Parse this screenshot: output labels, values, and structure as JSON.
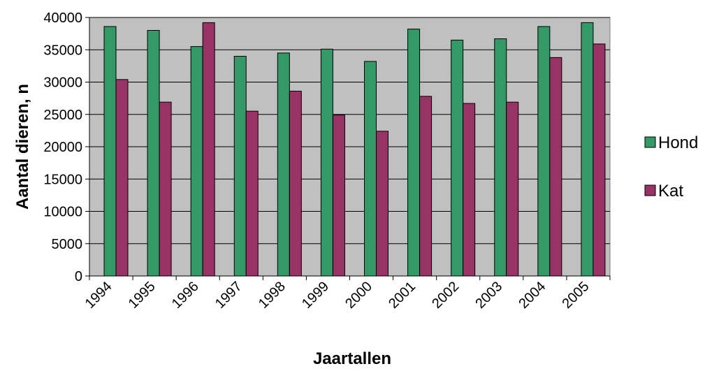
{
  "chart_data": {
    "type": "bar",
    "title": "",
    "xlabel": "Jaartallen",
    "ylabel": "Aantal dieren, n",
    "categories": [
      "1994",
      "1995",
      "1996",
      "1997",
      "1998",
      "1999",
      "2000",
      "2001",
      "2002",
      "2003",
      "2004",
      "2005"
    ],
    "series": [
      {
        "name": "Hond",
        "color": "#339966",
        "values": [
          38600,
          38000,
          35500,
          34000,
          34500,
          35100,
          33200,
          38200,
          36500,
          36700,
          38600,
          39200
        ]
      },
      {
        "name": "Kat",
        "color": "#993366",
        "values": [
          30400,
          26900,
          39200,
          25500,
          28600,
          24900,
          22400,
          27800,
          26700,
          26900,
          33800,
          35900
        ]
      }
    ],
    "ylim": [
      0,
      40000
    ],
    "yticks": [
      "0",
      "5000",
      "10000",
      "15000",
      "20000",
      "25000",
      "30000",
      "35000",
      "40000"
    ],
    "grid": true,
    "plot_background": "#c0c0c0",
    "legend_position": "right"
  }
}
